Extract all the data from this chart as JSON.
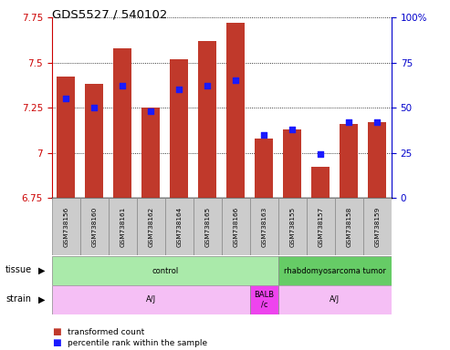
{
  "title": "GDS5527 / 540102",
  "samples": [
    "GSM738156",
    "GSM738160",
    "GSM738161",
    "GSM738162",
    "GSM738164",
    "GSM738165",
    "GSM738166",
    "GSM738163",
    "GSM738155",
    "GSM738157",
    "GSM738158",
    "GSM738159"
  ],
  "bar_values": [
    7.42,
    7.38,
    7.58,
    7.25,
    7.52,
    7.62,
    7.72,
    7.08,
    7.13,
    6.92,
    7.16,
    7.17
  ],
  "percentile_values": [
    55,
    50,
    62,
    48,
    60,
    62,
    65,
    35,
    38,
    24,
    42,
    42
  ],
  "ylim_left": [
    6.75,
    7.75
  ],
  "ylim_right": [
    0,
    100
  ],
  "yticks_left": [
    6.75,
    7.0,
    7.25,
    7.5,
    7.75
  ],
  "yticks_right": [
    0,
    25,
    50,
    75,
    100
  ],
  "bar_color": "#c0392b",
  "dot_color": "#1a1aff",
  "bar_bottom": 6.75,
  "left_label_color": "#cc0000",
  "right_label_color": "#0000cc",
  "tissue_control_color": "#aaeaaa",
  "tissue_tumor_color": "#66cc66",
  "strain_aj_color": "#f5bff5",
  "strain_balb_color": "#ee44ee",
  "sample_bg_color": "#cccccc",
  "ytick_left_labels": [
    "6.75",
    "7",
    "7.25",
    "7.5",
    "7.75"
  ],
  "ytick_right_labels": [
    "0",
    "25",
    "50",
    "75",
    "100%"
  ]
}
